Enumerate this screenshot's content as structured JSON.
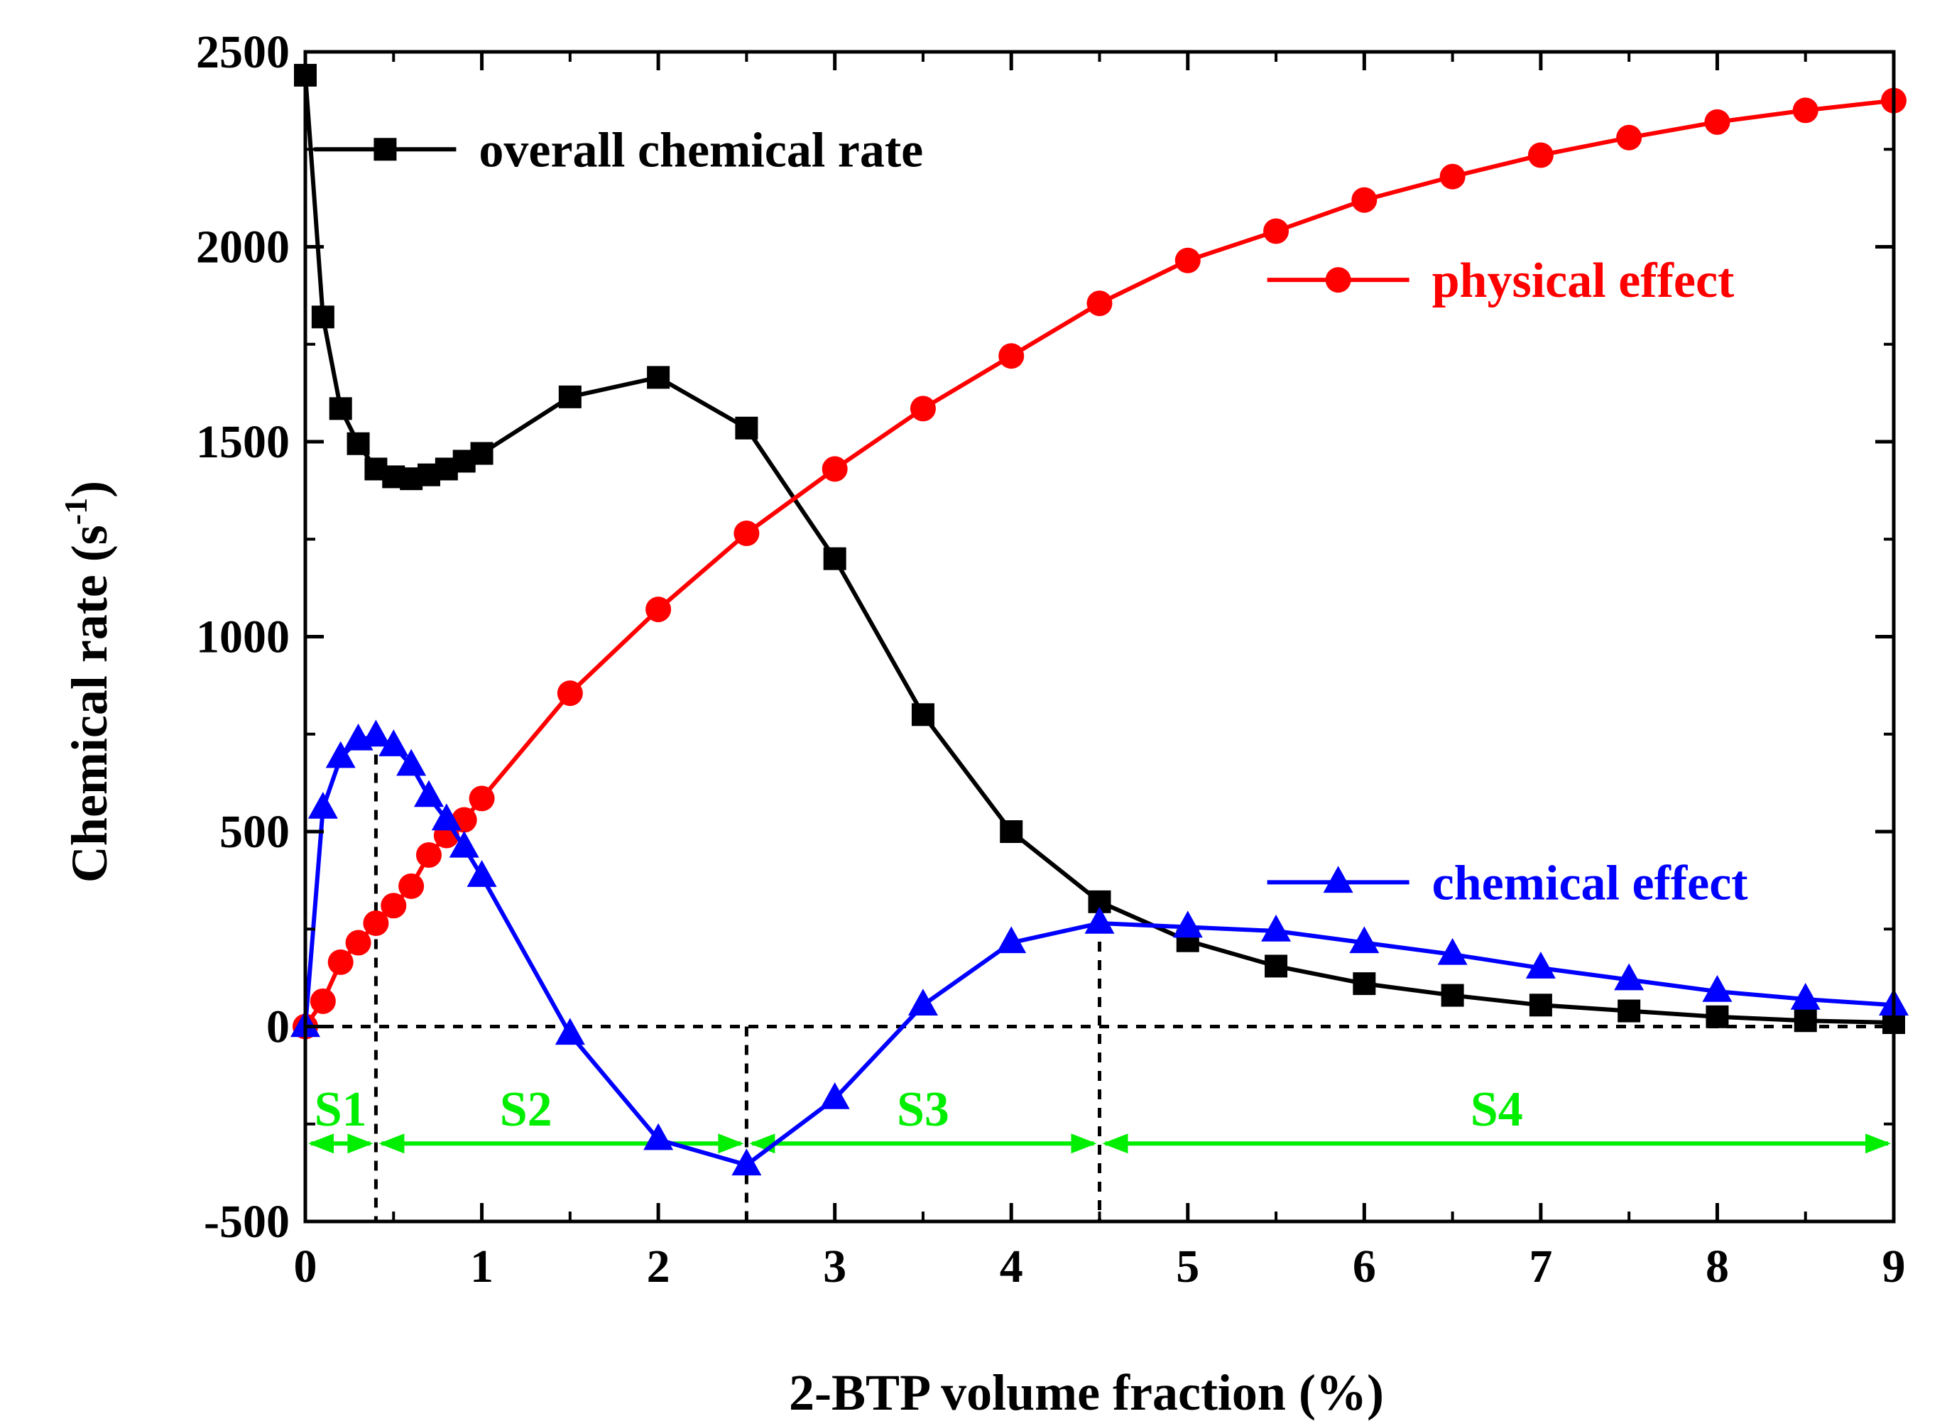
{
  "chart_data": {
    "type": "line",
    "title": "",
    "xlabel": "2-BTP volume fraction (%)",
    "ylabel": "Chemical rate (s",
    "ylabel_sup": "-1",
    "ylabel_close": ")",
    "xlim": [
      0,
      9
    ],
    "ylim": [
      -500,
      2500
    ],
    "x_ticks": [
      0,
      1,
      2,
      3,
      4,
      5,
      6,
      7,
      8,
      9
    ],
    "y_ticks": [
      -500,
      0,
      500,
      1000,
      1500,
      2000,
      2500
    ],
    "x_tick_labels": [
      "0",
      "1",
      "2",
      "3",
      "4",
      "5",
      "6",
      "7",
      "8",
      "9"
    ],
    "y_tick_labels": [
      "-500",
      "0",
      "500",
      "1000",
      "1500",
      "2000",
      "2500"
    ],
    "grid": false,
    "series": [
      {
        "name": "overall chemical rate",
        "color": "#000000",
        "marker": "square",
        "x": [
          0,
          0.1,
          0.2,
          0.3,
          0.4,
          0.5,
          0.6,
          0.7,
          0.8,
          0.9,
          1,
          1.5,
          2,
          2.5,
          3,
          3.5,
          4,
          4.5,
          5,
          5.5,
          6,
          6.5,
          7,
          7.5,
          8,
          8.5,
          9
        ],
        "y": [
          2440,
          1820,
          1585,
          1495,
          1430,
          1410,
          1405,
          1415,
          1430,
          1450,
          1470,
          1615,
          1665,
          1535,
          1200,
          800,
          500,
          320,
          220,
          155,
          110,
          80,
          55,
          40,
          25,
          15,
          10
        ]
      },
      {
        "name": "physical effect",
        "color": "#ff0000",
        "marker": "circle",
        "x": [
          0,
          0.1,
          0.2,
          0.3,
          0.4,
          0.5,
          0.6,
          0.7,
          0.8,
          0.9,
          1,
          1.5,
          2,
          2.5,
          3,
          3.5,
          4,
          4.5,
          5,
          5.5,
          6,
          6.5,
          7,
          7.5,
          8,
          8.5,
          9
        ],
        "y": [
          0,
          65,
          165,
          215,
          265,
          310,
          360,
          440,
          490,
          530,
          585,
          855,
          1070,
          1265,
          1430,
          1585,
          1720,
          1855,
          1965,
          2040,
          2120,
          2180,
          2235,
          2280,
          2320,
          2350,
          2375
        ]
      },
      {
        "name": "chemical effect",
        "color": "#0000ff",
        "marker": "triangle",
        "x": [
          0,
          0.1,
          0.2,
          0.3,
          0.4,
          0.5,
          0.6,
          0.7,
          0.8,
          0.9,
          1,
          1.5,
          2,
          2.5,
          3,
          3.5,
          4,
          4.5,
          5,
          5.5,
          6,
          6.5,
          7,
          7.5,
          8,
          8.5,
          9
        ],
        "y": [
          0,
          560,
          690,
          735,
          745,
          720,
          670,
          590,
          530,
          460,
          385,
          -20,
          -290,
          -355,
          -185,
          55,
          215,
          265,
          255,
          245,
          215,
          185,
          150,
          120,
          90,
          70,
          55
        ]
      }
    ],
    "legend": [
      {
        "series": 0,
        "label": "overall chemical rate",
        "color": "#000000",
        "anchor_x": 0.05,
        "anchor_y": 2250
      },
      {
        "series": 1,
        "label": "physical effect",
        "color": "#ff0000",
        "anchor_x": 5.45,
        "anchor_y": 1915
      },
      {
        "series": 2,
        "label": "chemical effect",
        "color": "#0000ff",
        "anchor_x": 5.45,
        "anchor_y": 370
      }
    ],
    "reference_lines": {
      "horizontal_y": 0,
      "vertical": [
        {
          "x": 0.4,
          "y_top": 745
        },
        {
          "x": 2.5,
          "y_top": 0
        },
        {
          "x": 4.5,
          "y_top": 265
        }
      ]
    },
    "stages": {
      "color": "#00ee00",
      "arrow_y": -300,
      "items": [
        {
          "label": "S1",
          "x_start": 0,
          "x_end": 0.4,
          "label_x": 0.2,
          "label_y": -210
        },
        {
          "label": "S2",
          "x_start": 0.4,
          "x_end": 2.5,
          "label_x": 1.25,
          "label_y": -210
        },
        {
          "label": "S3",
          "x_start": 2.5,
          "x_end": 4.5,
          "label_x": 3.5,
          "label_y": -210
        },
        {
          "label": "S4",
          "x_start": 4.5,
          "x_end": 9,
          "label_x": 6.75,
          "label_y": -210
        }
      ]
    }
  }
}
